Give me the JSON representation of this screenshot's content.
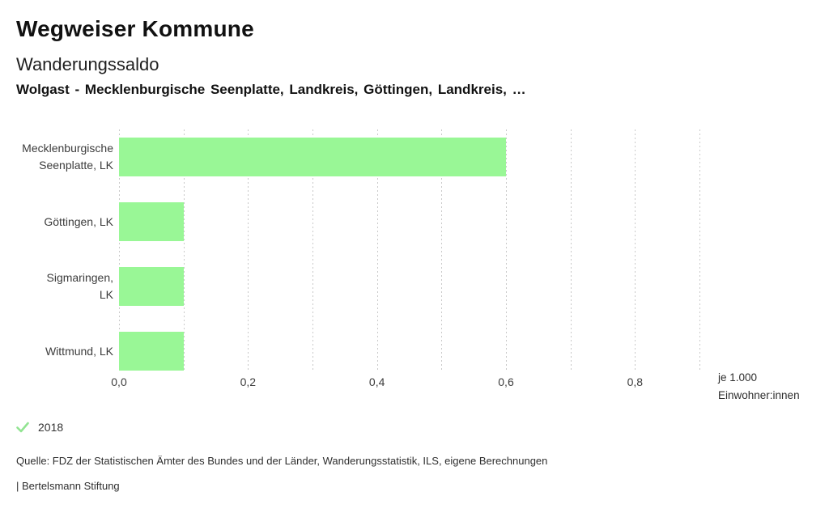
{
  "header": {
    "app_title": "Wegweiser Kommune",
    "indicator_title": "Wanderungssaldo",
    "selection": "Wolgast - Mecklenburgische Seenplatte, Landkreis, Göttingen, Landkreis, …"
  },
  "chart_data": {
    "type": "bar",
    "orientation": "horizontal",
    "title": "Wanderungssaldo",
    "categories": [
      "Mecklenburgische Seenplatte, LK",
      "Göttingen, LK",
      "Sigmaringen, LK",
      "Wittmund, LK"
    ],
    "category_display_lines": [
      [
        "Mecklenburgische",
        "Seenplatte, LK"
      ],
      [
        "Göttingen, LK"
      ],
      [
        "Sigmaringen,",
        "LK"
      ],
      [
        "Wittmund, LK"
      ]
    ],
    "series": [
      {
        "name": "2018",
        "values": [
          0.6,
          0.1,
          0.1,
          0.1
        ]
      }
    ],
    "xlabel": "je 1.000 Einwohner:innen",
    "unit_lines": [
      "je 1.000",
      "Einwohner:innen"
    ],
    "ylabel": "",
    "xlim": [
      0,
      0.9
    ],
    "grid": true,
    "grid_step": 0.1,
    "x_tick_values": [
      0,
      0.2,
      0.4,
      0.6,
      0.8
    ],
    "x_tick_labels": [
      "0,0",
      "0,2",
      "0,4",
      "0,6",
      "0,8"
    ],
    "legend_position": "bottom-left",
    "colors": {
      "bar": "#99f796",
      "grid": "#c9c9c9",
      "tick_text": "#3c3c3c",
      "check": "#92e492"
    }
  },
  "legend": {
    "year_label": "2018"
  },
  "footer": {
    "source_text": "Quelle: FDZ der Statistischen Ämter des Bundes und der Länder, Wanderungsstatistik, ILS, eigene Berechnungen",
    "branding_text": "| Bertelsmann Stiftung"
  }
}
